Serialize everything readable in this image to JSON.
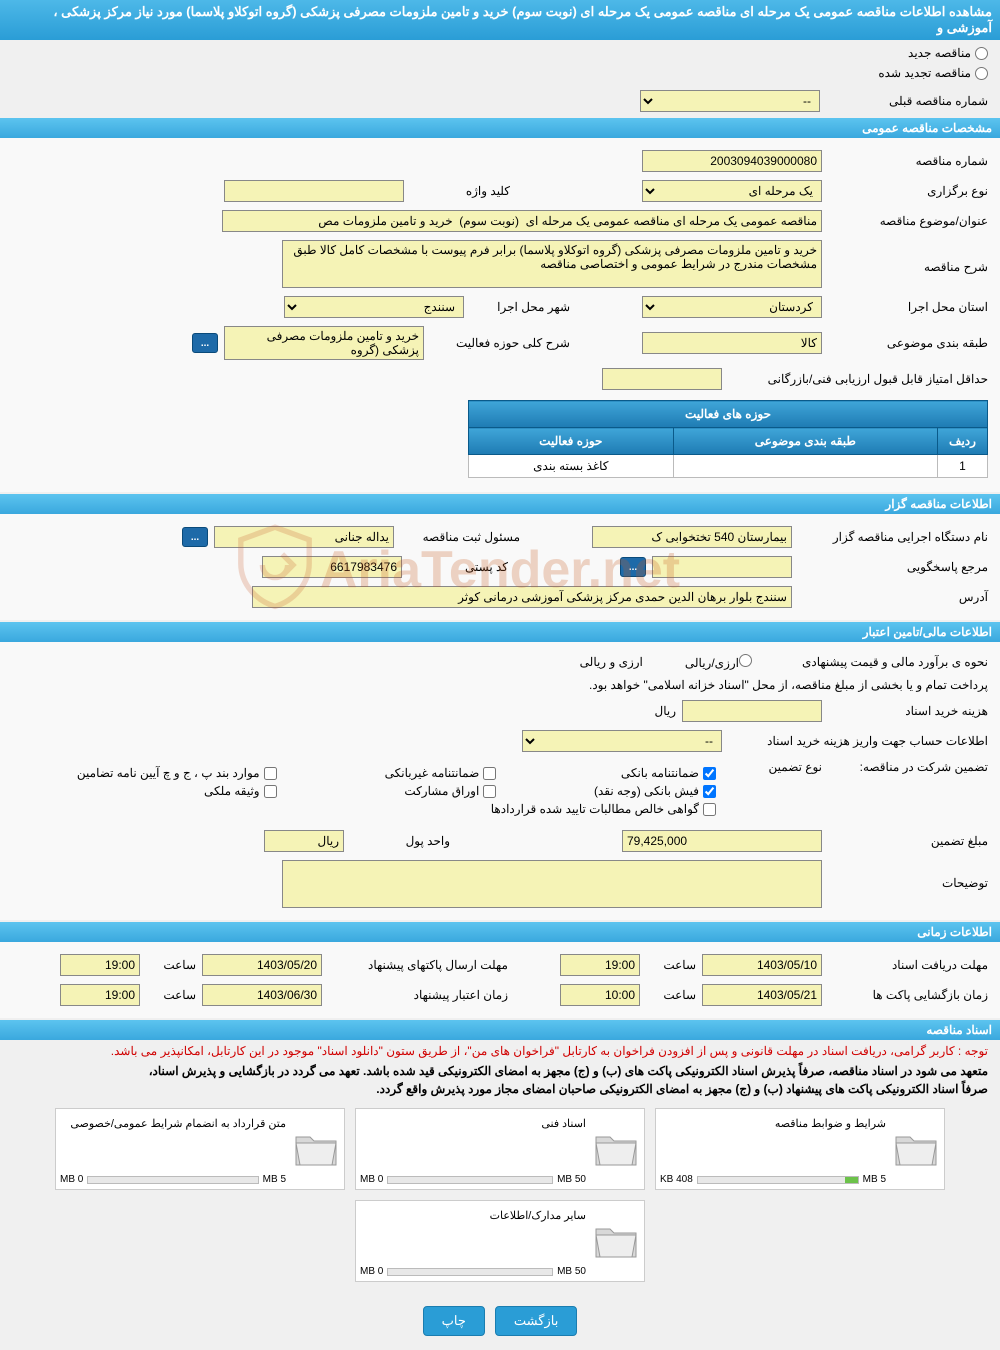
{
  "header": {
    "title": "مشاهده اطلاعات مناقصه عمومی یک مرحله ای مناقصه عمومی یک مرحله ای (نوبت سوم) خرید و تامین ملزومات مصرفی پزشکی (گروه اتوکلاو پلاسما) مورد نیاز مرکز پزشکی ، آموزشی و"
  },
  "radios": {
    "new_tender": "مناقصه جدید",
    "renewed_tender": "مناقصه تجدید شده"
  },
  "prev": {
    "label": "شماره مناقصه قبلی",
    "value": "--"
  },
  "sections": {
    "general": "مشخصات مناقصه عمومی",
    "organizer": "اطلاعات مناقصه گزار",
    "financial": "اطلاعات مالی/تامین اعتبار",
    "timing": "اطلاعات زمانی",
    "docs": "اسناد مناقصه"
  },
  "general": {
    "tender_no_label": "شماره مناقصه",
    "tender_no": "2003094039000080",
    "type_label": "نوع برگزاری",
    "type_value": "یک مرحله ای",
    "keyword_label": "کلید واژه",
    "keyword_value": "",
    "subject_label": "عنوان/موضوع مناقصه",
    "subject_value": "مناقصه عمومی یک مرحله ای مناقصه عمومی یک مرحله ای  (نوبت سوم)  خرید و تامین ملزومات مص",
    "desc_label": "شرح مناقصه",
    "desc_value": "خرید و تامین ملزومات مصرفی پزشکی (گروه اتوکلاو پلاسما) برابر فرم پیوست با مشخصات کامل کالا طبق مشخصات مندرج در شرایط عمومی و اختصاصی مناقصه",
    "province_label": "استان محل اجرا",
    "province_value": "کردستان",
    "city_label": "شهر محل اجرا",
    "city_value": "سنندج",
    "category_label": "طبقه بندی موضوعی",
    "category_value": "کالا",
    "scope_label": "شرح کلی حوزه فعالیت",
    "scope_value": "خرید و تامین ملزومات مصرفی پزشکی (گروه",
    "tech_min_label": "حداقل امتیاز قابل قبول ارزیابی فنی/بازرگانی",
    "tech_min_value": ""
  },
  "activity_table": {
    "caption": "حوزه های فعالیت",
    "col_row": "ردیف",
    "col_category": "طبقه بندی موضوعی",
    "col_scope": "حوزه فعالیت",
    "rows": [
      {
        "idx": "1",
        "category": "",
        "scope": "کاغذ بسته بندی"
      }
    ]
  },
  "organizer": {
    "org_label": "نام دستگاه اجرایی مناقصه گزار",
    "org_value": "بیمارستان 540 تختخوابی ک",
    "resp_label": "مسئول ثبت مناقصه",
    "resp_value": "یداله جنانی",
    "contact_label": "مرجع پاسخگویی",
    "contact_value": "",
    "postal_label": "کد پستی",
    "postal_value": "6617983476",
    "address_label": "آدرس",
    "address_value": "سنندج بلوار برهان الدین حمدی مرکز پزشکی آموزشی درمانی کوثر"
  },
  "financial": {
    "estimate_label": "نحوه ی برآورد مالی و قیمت پیشنهادی",
    "estimate_choice": "ارزی/ریالی",
    "choice_rial": "ارزی و ریالی",
    "payment_note": "پرداخت تمام و یا بخشی از مبلغ مناقصه، از محل \"اسناد خزانه اسلامی\" خواهد بود.",
    "buy_cost_label": "هزینه خرید اسناد",
    "buy_cost_value": "",
    "buy_cost_unit": "ریال",
    "deposit_info_label": "اطلاعات حساب جهت واریز هزینه خرید اسناد",
    "deposit_info_value": "--",
    "guarantee_label": "تضمین شرکت در مناقصه:",
    "guarantee_type_label": "نوع تضمین",
    "chk1": "ضمانتنامه بانکی",
    "chk2": "ضمانتنامه غیربانکی",
    "chk3": "موارد بند پ ، ج و چ آیین نامه تضامین",
    "chk4": "فیش بانکی (وجه نقد)",
    "chk5": "اوراق مشارکت",
    "chk6": "وثیقه ملکی",
    "chk7": "گواهی خالص مطالبات تایید شده قراردادها",
    "amount_label": "مبلغ تضمین",
    "amount_value": "79,425,000",
    "amount_unit_label": "واحد پول",
    "amount_unit_value": "ریال",
    "notes_label": "توضیحات",
    "notes_value": ""
  },
  "timing": {
    "recv_label": "مهلت دریافت اسناد",
    "recv_date": "1403/05/10",
    "recv_time_label": "ساعت",
    "recv_time": "19:00",
    "send_label": "مهلت ارسال پاکتهای پیشنهاد",
    "send_date": "1403/05/20",
    "send_time_label": "ساعت",
    "send_time": "19:00",
    "open_label": "زمان بازگشایی پاکت ها",
    "open_date": "1403/05/21",
    "open_time_label": "ساعت",
    "open_time": "10:00",
    "valid_label": "زمان اعتبار پیشنهاد",
    "valid_date": "1403/06/30",
    "valid_time_label": "ساعت",
    "valid_time": "19:00"
  },
  "docs": {
    "notice1": "توجه : کاربر گرامی، دریافت اسناد در مهلت قانونی و پس از افزودن فراخوان به کارتابل \"فراخوان های من\"، از طریق ستون \"دانلود اسناد\" موجود در این کارتابل، امکانپذیر می باشد.",
    "notice2": "متعهد می شود در اسناد مناقصه، صرفاً پذیرش اسناد الکترونیکی پاکت های (ب) و (ج) مجهز به امضای الکترونیکی قید شده باشد. تعهد می گردد در بازگشایی و پذیرش اسناد،",
    "notice3": "صرفاً اسناد الکترونیکی پاکت های پیشنهاد (ب) و (ج) مجهز به امضای الکترونیکی صاحبان امضای مجاز مورد پذیرش واقع گردد.",
    "boxes": [
      {
        "title": "شرایط و ضوابط مناقصه",
        "used": "408 KB",
        "max": "5 MB",
        "fill_pct": 8
      },
      {
        "title": "اسناد فنی",
        "used": "0 MB",
        "max": "50 MB",
        "fill_pct": 0
      },
      {
        "title": "متن قرارداد به انضمام شرایط عمومی/خصوصی",
        "used": "0 MB",
        "max": "5 MB",
        "fill_pct": 0
      },
      {
        "title": "سایر مدارک/اطلاعات",
        "used": "0 MB",
        "max": "50 MB",
        "fill_pct": 0
      }
    ]
  },
  "footer": {
    "back": "بازگشت",
    "print": "چاپ"
  },
  "watermark": "AriaTender.net",
  "colors": {
    "header_grad_top": "#4db8e8",
    "header_grad_bot": "#2a9dd6",
    "yellow_input": "#f5f3b6",
    "btn_blue": "#2a9dd6",
    "notice_red": "#d00000",
    "bar_fill": "#6cc24a"
  }
}
